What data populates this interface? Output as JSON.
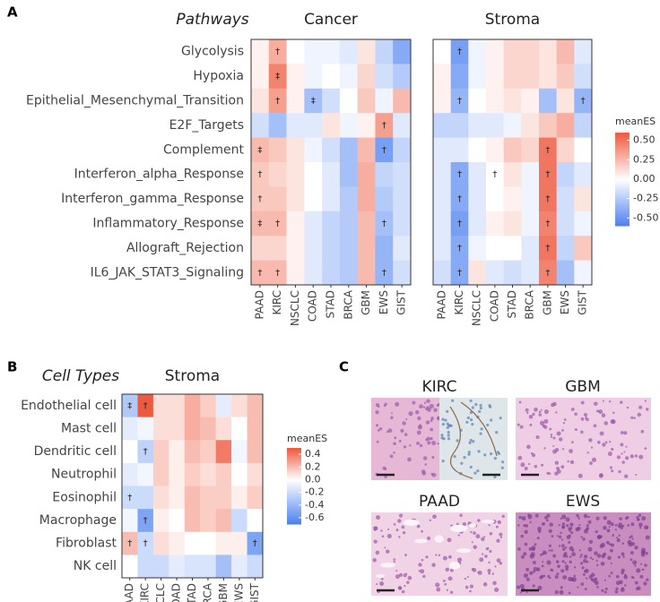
{
  "figure": {
    "panel_labels": [
      "A",
      "B",
      "C"
    ]
  },
  "histology": {
    "titles": [
      "KIRC",
      "GBM",
      "PAAD",
      "EWS"
    ]
  },
  "chart_data": [
    {
      "type": "heatmap",
      "title": "Cancer",
      "row_title": "Pathways",
      "rows": [
        "Glycolysis",
        "Hypoxia",
        "Epithelial_Mesenchymal_Transition",
        "E2F_Targets",
        "Complement",
        "Interferon_alpha_Response",
        "Interferon_gamma_Response",
        "Inflammatory_Response",
        "Allograft_Rejection",
        "IL6_JAK_STAT3_Signaling"
      ],
      "columns": [
        "PAAD",
        "KIRC",
        "NSCLC",
        "COAD",
        "STAD",
        "BRCA",
        "GBM",
        "EWS",
        "GIST"
      ],
      "values": [
        [
          0.05,
          0.3,
          0.0,
          -0.05,
          -0.05,
          -0.1,
          0.1,
          -0.2,
          -0.4
        ],
        [
          0.05,
          0.45,
          0.05,
          -0.05,
          0.0,
          -0.05,
          0.15,
          -0.15,
          -0.25
        ],
        [
          0.1,
          0.35,
          0.05,
          -0.3,
          -0.15,
          0.0,
          0.2,
          -0.05,
          0.25
        ],
        [
          -0.15,
          -0.3,
          -0.1,
          -0.1,
          0.1,
          -0.05,
          0.05,
          0.35,
          -0.1
        ],
        [
          0.25,
          0.2,
          0.1,
          -0.05,
          -0.15,
          -0.3,
          0.25,
          -0.45,
          -0.2
        ],
        [
          0.2,
          0.15,
          0.1,
          0.0,
          -0.1,
          -0.3,
          0.3,
          -0.2,
          -0.15
        ],
        [
          0.2,
          0.2,
          0.1,
          0.0,
          -0.1,
          -0.25,
          0.3,
          -0.25,
          -0.15
        ],
        [
          0.25,
          0.25,
          0.05,
          -0.1,
          -0.2,
          -0.25,
          0.25,
          -0.3,
          -0.15
        ],
        [
          0.15,
          0.15,
          0.05,
          -0.1,
          -0.2,
          -0.25,
          0.25,
          -0.35,
          -0.1
        ],
        [
          0.25,
          0.25,
          0.05,
          -0.1,
          -0.2,
          -0.25,
          0.25,
          -0.35,
          -0.15
        ]
      ],
      "annotations": [
        [
          null,
          "†",
          null,
          null,
          null,
          null,
          null,
          null,
          null
        ],
        [
          null,
          "‡",
          null,
          null,
          null,
          null,
          null,
          null,
          null
        ],
        [
          null,
          "†",
          null,
          "‡",
          null,
          null,
          null,
          null,
          null
        ],
        [
          null,
          null,
          null,
          null,
          null,
          null,
          null,
          "†",
          null
        ],
        [
          "‡",
          null,
          null,
          null,
          null,
          null,
          null,
          "†",
          null
        ],
        [
          "†",
          null,
          null,
          null,
          null,
          null,
          null,
          null,
          null
        ],
        [
          "†",
          null,
          null,
          null,
          null,
          null,
          null,
          null,
          null
        ],
        [
          "‡",
          "†",
          null,
          null,
          null,
          null,
          null,
          "†",
          null
        ],
        [
          null,
          null,
          null,
          null,
          null,
          null,
          null,
          null,
          null
        ],
        [
          "†",
          "†",
          null,
          null,
          null,
          null,
          null,
          "†",
          null
        ]
      ],
      "colorscale": [
        "#4a80f0",
        "#ffffff",
        "#ee5a3f"
      ],
      "clim": [
        -0.6,
        0.6
      ]
    },
    {
      "type": "heatmap",
      "title": "Stroma",
      "rows": [
        "Glycolysis",
        "Hypoxia",
        "Epithelial_Mesenchymal_Transition",
        "E2F_Targets",
        "Complement",
        "Interferon_alpha_Response",
        "Interferon_gamma_Response",
        "Inflammatory_Response",
        "Allograft_Rejection",
        "IL6_JAK_STAT3_Signaling"
      ],
      "columns": [
        "PAAD",
        "KIRC",
        "NSCLC",
        "COAD",
        "STAD",
        "BRCA",
        "GBM",
        "EWS",
        "GIST"
      ],
      "values": [
        [
          0.0,
          -0.45,
          -0.05,
          0.05,
          0.15,
          0.15,
          0.1,
          0.25,
          -0.1
        ],
        [
          0.05,
          -0.4,
          -0.05,
          0.05,
          0.15,
          0.15,
          0.1,
          0.2,
          -0.15
        ],
        [
          0.05,
          -0.35,
          0.0,
          0.05,
          0.1,
          0.05,
          -0.3,
          0.1,
          -0.35
        ],
        [
          -0.2,
          -0.2,
          -0.1,
          -0.1,
          -0.05,
          0.1,
          0.2,
          0.3,
          -0.2
        ],
        [
          -0.1,
          -0.1,
          0.0,
          0.05,
          0.2,
          0.15,
          0.5,
          0.15,
          0.0
        ],
        [
          -0.1,
          -0.4,
          -0.1,
          0.0,
          0.1,
          -0.05,
          0.5,
          -0.2,
          -0.1
        ],
        [
          -0.1,
          -0.4,
          -0.1,
          0.0,
          0.05,
          -0.05,
          0.5,
          -0.15,
          0.1
        ],
        [
          -0.1,
          -0.45,
          -0.1,
          0.05,
          0.1,
          -0.05,
          0.45,
          -0.15,
          -0.05
        ],
        [
          -0.1,
          -0.4,
          -0.05,
          0.0,
          0.0,
          -0.1,
          0.5,
          -0.2,
          0.2
        ],
        [
          -0.15,
          -0.4,
          0.1,
          -0.1,
          -0.15,
          -0.1,
          0.45,
          -0.3,
          -0.05
        ]
      ],
      "annotations": [
        [
          null,
          "†",
          null,
          null,
          null,
          null,
          null,
          null,
          null
        ],
        [
          null,
          null,
          null,
          null,
          null,
          null,
          null,
          null,
          null
        ],
        [
          null,
          "†",
          null,
          null,
          null,
          null,
          null,
          null,
          "†"
        ],
        [
          null,
          null,
          null,
          null,
          null,
          null,
          null,
          null,
          null
        ],
        [
          null,
          null,
          null,
          null,
          null,
          null,
          "†",
          null,
          null
        ],
        [
          null,
          "†",
          null,
          "†",
          null,
          null,
          "†",
          null,
          null
        ],
        [
          null,
          "†",
          null,
          null,
          null,
          null,
          "†",
          null,
          null
        ],
        [
          null,
          "†",
          null,
          null,
          null,
          null,
          "†",
          null,
          null
        ],
        [
          null,
          "†",
          null,
          null,
          null,
          null,
          "†",
          null,
          null
        ],
        [
          null,
          "†",
          null,
          null,
          null,
          null,
          "†",
          null,
          null
        ]
      ],
      "colorscale": [
        "#4a80f0",
        "#ffffff",
        "#ee5a3f"
      ],
      "clim": [
        -0.6,
        0.6
      ],
      "color_label": "meanES",
      "cticks": [
        {
          "value": 0.5,
          "label": "0.50"
        },
        {
          "value": 0.25,
          "label": "0.25"
        },
        {
          "value": 0,
          "label": "0.00"
        },
        {
          "value": -0.25,
          "label": "-0.25"
        },
        {
          "value": -0.5,
          "label": "-0.50"
        }
      ]
    },
    {
      "type": "heatmap",
      "title": "Stroma",
      "row_title": "Cell Types",
      "rows": [
        "Endothelial cell",
        "Mast cell",
        "Dendritic cell",
        "Neutrophil",
        "Eosinophil",
        "Macrophage",
        "Fibroblast",
        "NK cell"
      ],
      "columns": [
        "PAAD",
        "KIRC",
        "NSCLC",
        "COAD",
        "STAD",
        "BRCA",
        "GBM",
        "EWS",
        "GIST"
      ],
      "values": [
        [
          -0.3,
          0.5,
          0.1,
          0.1,
          0.25,
          0.15,
          -0.1,
          0.1,
          0.2
        ],
        [
          -0.1,
          -0.05,
          0.1,
          0.1,
          0.25,
          0.2,
          0.1,
          0.0,
          0.2
        ],
        [
          0.0,
          -0.25,
          0.15,
          0.05,
          0.2,
          0.15,
          0.4,
          -0.05,
          0.2
        ],
        [
          -0.1,
          -0.05,
          0.15,
          0.05,
          0.15,
          0.1,
          0.15,
          0.0,
          0.1
        ],
        [
          -0.2,
          -0.2,
          0.1,
          0.05,
          0.2,
          0.15,
          0.15,
          0.05,
          0.15
        ],
        [
          -0.05,
          -0.5,
          0.05,
          0.0,
          0.2,
          0.15,
          0.2,
          -0.2,
          0.0
        ],
        [
          0.2,
          -0.2,
          0.1,
          0.05,
          0.0,
          0.0,
          0.05,
          0.05,
          -0.5
        ],
        [
          0.0,
          -0.2,
          -0.2,
          -0.1,
          -0.15,
          -0.15,
          -0.35,
          -0.1,
          -0.2
        ]
      ],
      "annotations": [
        [
          "‡",
          "†",
          null,
          null,
          null,
          null,
          null,
          null,
          null
        ],
        [
          null,
          null,
          null,
          null,
          null,
          null,
          null,
          null,
          null
        ],
        [
          null,
          "†",
          null,
          null,
          null,
          null,
          null,
          null,
          null
        ],
        [
          null,
          null,
          null,
          null,
          null,
          null,
          null,
          null,
          null
        ],
        [
          "†",
          null,
          null,
          null,
          null,
          null,
          null,
          null,
          null
        ],
        [
          null,
          "†",
          null,
          null,
          null,
          null,
          null,
          null,
          null
        ],
        [
          "†",
          "†",
          null,
          null,
          null,
          null,
          null,
          null,
          "†"
        ],
        [
          null,
          null,
          null,
          null,
          null,
          null,
          null,
          null,
          null
        ]
      ],
      "colorscale": [
        "#4a80f0",
        "#ffffff",
        "#ee5a3f"
      ],
      "clim": [
        -0.7,
        0.5
      ],
      "color_label": "meanES",
      "cticks": [
        0.4,
        0.2,
        {
          "value": 0,
          "label": "0.0"
        },
        -0.2,
        -0.4,
        -0.6
      ]
    }
  ]
}
